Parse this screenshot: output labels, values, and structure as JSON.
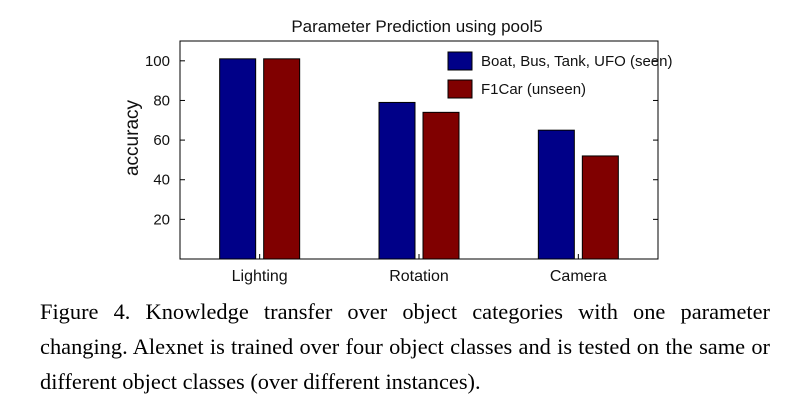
{
  "chart_data": {
    "type": "bar",
    "title": "Parameter Prediction using pool5",
    "xlabel": "",
    "ylabel": "accuracy",
    "categories": [
      "Lighting",
      "Rotation",
      "Camera"
    ],
    "series": [
      {
        "name": "Boat, Bus, Tank, UFO (seen)",
        "color": "#000088",
        "values": [
          101,
          79,
          65
        ]
      },
      {
        "name": "F1Car (unseen)",
        "color": "#800000",
        "values": [
          101,
          74,
          52
        ]
      }
    ],
    "ylim": [
      0,
      110
    ],
    "yticks": [
      20,
      40,
      60,
      80,
      100
    ],
    "legend_position": "top-right",
    "grid": false
  },
  "caption": {
    "label": "Figure 4.",
    "text": "Knowledge transfer over object categories with one parameter changing. Alexnet is trained over four object classes and is tested on the same or different object classes (over different instances)."
  }
}
